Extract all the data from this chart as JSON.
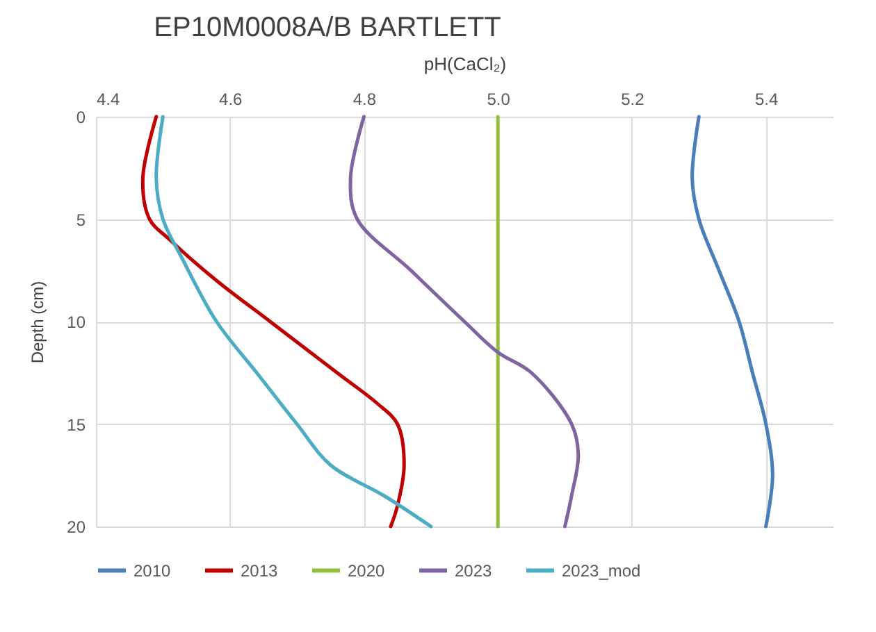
{
  "chart_data": {
    "type": "line",
    "title": "EP10M0008A/B BARTLETT",
    "xlabel": "pH(CaCl₂)",
    "ylabel": "Depth (cm)",
    "xlim": [
      4.4,
      5.5
    ],
    "xticks": [
      4.4,
      4.6,
      4.8,
      {
        "value": 5,
        "label": "5.0"
      },
      5.2,
      5.4
    ],
    "ylim": [
      20,
      0
    ],
    "yticks": [
      0,
      5,
      10,
      15,
      20
    ],
    "grid": true,
    "legend": "bottom",
    "series": [
      {
        "name": "2010",
        "color": "#4a7ebb",
        "x": [
          5.3,
          5.29,
          5.3,
          5.33,
          5.36,
          5.38,
          5.4,
          5.41,
          5.4
        ],
        "values": [
          0,
          3,
          5,
          7.5,
          10,
          12.5,
          15,
          17.5,
          20
        ]
      },
      {
        "name": "2013",
        "color": "#c00000",
        "x": [
          4.49,
          4.47,
          4.48,
          4.51,
          4.58,
          4.66,
          4.76,
          4.82,
          4.85,
          4.86,
          4.85,
          4.84
        ],
        "values": [
          0,
          3,
          5,
          6,
          8,
          10,
          12.5,
          14,
          15,
          17,
          19,
          20
        ]
      },
      {
        "name": "2020",
        "color": "#92c03c",
        "x": [
          5,
          5
        ],
        "values": [
          0,
          20
        ]
      },
      {
        "name": "2023",
        "color": "#8064a2",
        "x": [
          4.8,
          4.78,
          4.79,
          4.87,
          4.95,
          5,
          5.05,
          5.11,
          5.12,
          5.11,
          5.1
        ],
        "values": [
          0,
          3,
          5,
          7.5,
          10,
          11.5,
          12.5,
          15,
          16.5,
          18.5,
          20
        ]
      },
      {
        "name": "2023_mod",
        "color": "#4bacc6",
        "x": [
          4.5,
          4.49,
          4.5,
          4.53,
          4.58,
          4.64,
          4.7,
          4.75,
          4.83,
          4.9
        ],
        "values": [
          0,
          3,
          5,
          7,
          10,
          12.5,
          15,
          17,
          18.5,
          20
        ]
      }
    ]
  }
}
